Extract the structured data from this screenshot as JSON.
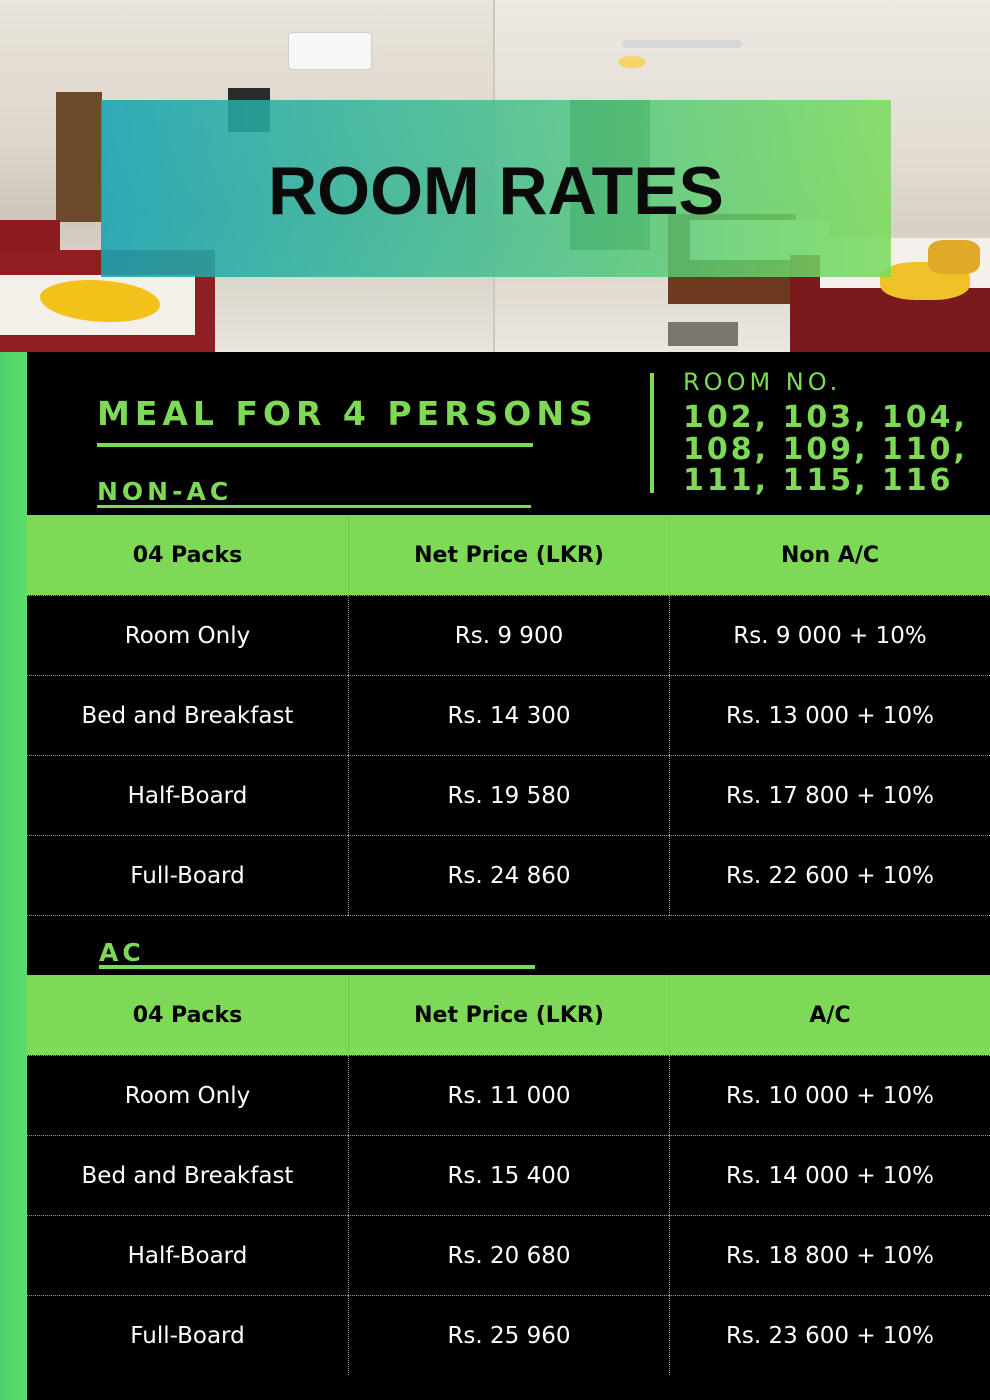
{
  "title": "ROOM RATES",
  "meal_heading": "MEAL FOR 4 PERSONS",
  "room_no": {
    "label": "ROOM NO.",
    "lines": [
      "102, 103, 104,",
      "108, 109, 110,",
      "111, 115, 116"
    ]
  },
  "colors": {
    "accent_green": "#7ed957",
    "background": "#000000"
  },
  "non_ac": {
    "label": "NON-AC",
    "headers": [
      "04 Packs",
      "Net Price (LKR)",
      "Non A/C"
    ],
    "rows": [
      [
        "Room Only",
        "Rs. 9 900",
        "Rs. 9 000 + 10%"
      ],
      [
        "Bed and Breakfast",
        "Rs. 14 300",
        "Rs. 13 000 + 10%"
      ],
      [
        "Half-Board",
        "Rs. 19 580",
        "Rs. 17 800 + 10%"
      ],
      [
        "Full-Board",
        "Rs. 24 860",
        "Rs. 22 600 + 10%"
      ]
    ]
  },
  "ac": {
    "label": "AC",
    "headers": [
      "04 Packs",
      "Net Price (LKR)",
      "A/C"
    ],
    "rows": [
      [
        "Room Only",
        "Rs. 11 000",
        "Rs. 10 000 + 10%"
      ],
      [
        "Bed and Breakfast",
        "Rs. 15 400",
        "Rs. 14 000 + 10%"
      ],
      [
        "Half-Board",
        "Rs. 20 680",
        "Rs. 18 800 + 10%"
      ],
      [
        "Full-Board",
        "Rs. 25 960",
        "Rs. 23 600 + 10%"
      ]
    ]
  }
}
